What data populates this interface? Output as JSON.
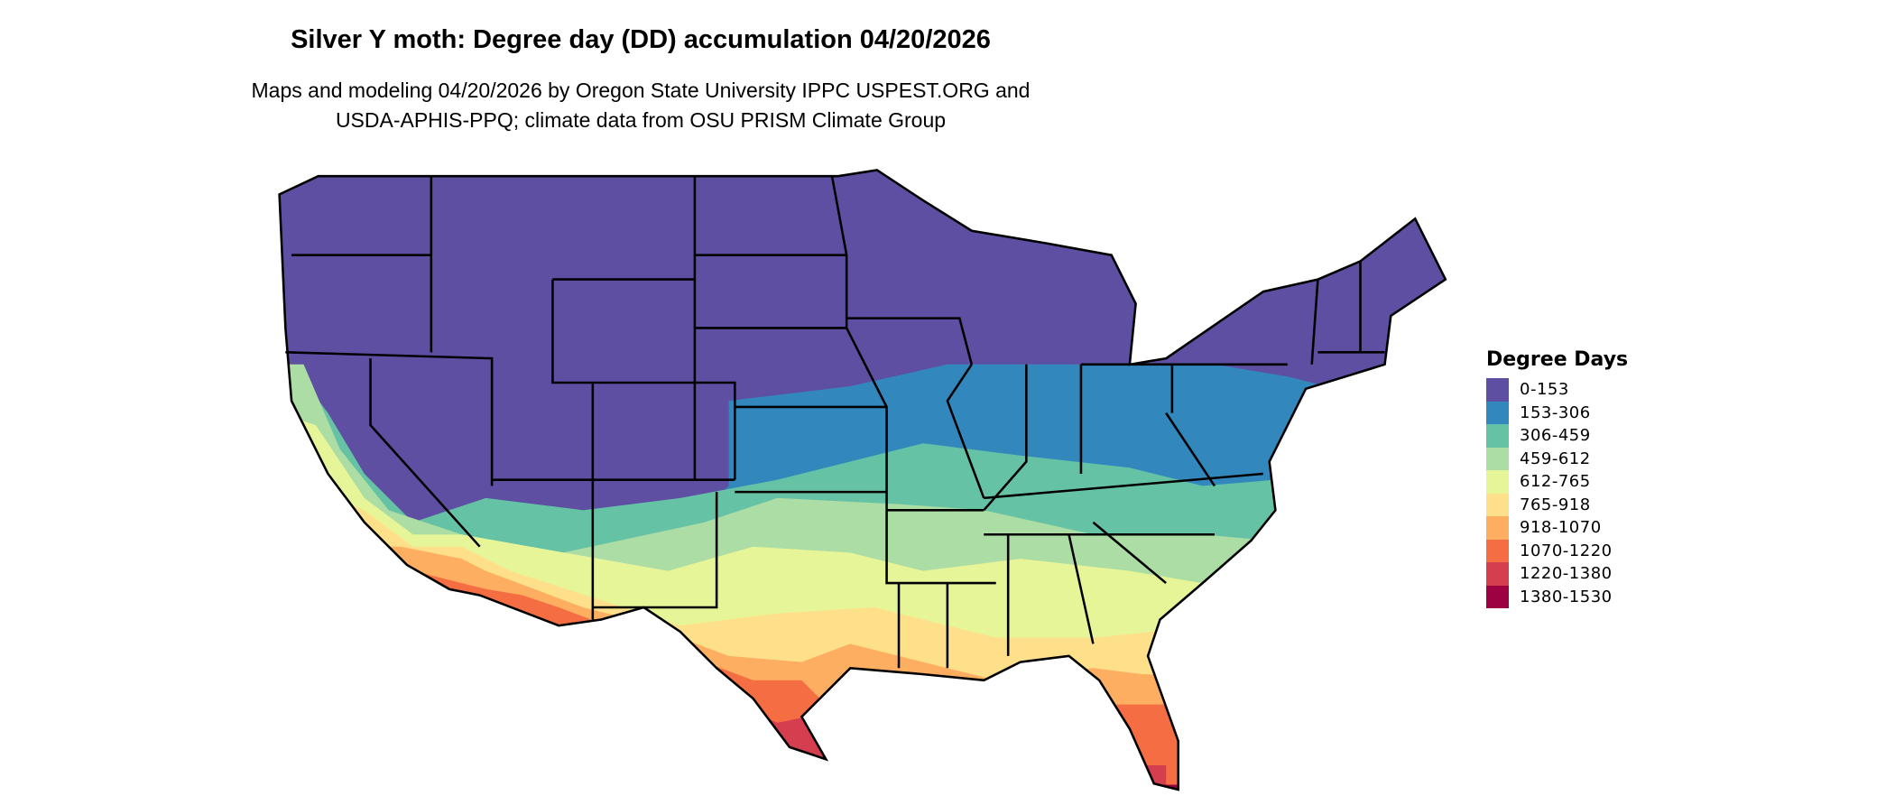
{
  "title": "Silver Y moth: Degree day (DD) accumulation 04/20/2026",
  "subtitle": [
    "Maps and modeling 04/20/2026 by Oregon State University IPPC USPEST.ORG and",
    "USDA-APHIS-PPQ; climate data from OSU PRISM Climate Group"
  ],
  "legend": {
    "title": "Degree Days",
    "items": [
      {
        "label": "0-153",
        "color": "#5E4FA2"
      },
      {
        "label": "153-306",
        "color": "#3288BD"
      },
      {
        "label": "306-459",
        "color": "#66C2A5"
      },
      {
        "label": "459-612",
        "color": "#ABDDA4"
      },
      {
        "label": "612-765",
        "color": "#E6F598"
      },
      {
        "label": "765-918",
        "color": "#FEE08B"
      },
      {
        "label": "918-1070",
        "color": "#FDAE61"
      },
      {
        "label": "1070-1220",
        "color": "#F46D43"
      },
      {
        "label": "1220-1380",
        "color": "#D53E4F"
      },
      {
        "label": "1380-1530",
        "color": "#9E0142"
      }
    ]
  }
}
